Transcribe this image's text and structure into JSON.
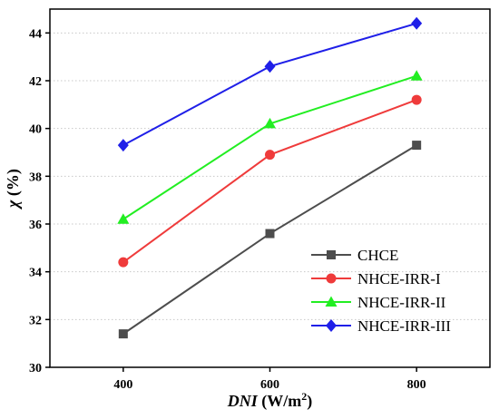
{
  "chart_data": {
    "type": "line",
    "x": [
      400,
      600,
      800
    ],
    "xlim": [
      300,
      900
    ],
    "ylim": [
      30,
      45
    ],
    "xticks": [
      400,
      600,
      800
    ],
    "yticks": [
      30,
      32,
      34,
      36,
      38,
      40,
      42,
      44
    ],
    "xlabel": {
      "italic": "DNI",
      "rest": " (W/m",
      "sup": "2",
      "end": ")"
    },
    "ylabel": {
      "italic": "χ",
      "rest": " (%)"
    },
    "grid": "horizontal dotted",
    "legend_position": "bottom-right",
    "series": [
      {
        "name": "CHCE",
        "color": "#4d4d4d",
        "marker": "square",
        "values": [
          31.4,
          35.6,
          39.3
        ]
      },
      {
        "name": "NHCE-IRR-I",
        "color": "#ef3b3b",
        "marker": "circle",
        "values": [
          34.4,
          38.9,
          41.2
        ]
      },
      {
        "name": "NHCE-IRR-II",
        "color": "#22ee22",
        "marker": "triangle",
        "values": [
          36.2,
          40.2,
          42.2
        ]
      },
      {
        "name": "NHCE-IRR-III",
        "color": "#1f1fe8",
        "marker": "diamond",
        "values": [
          39.3,
          42.6,
          44.4
        ]
      }
    ]
  }
}
